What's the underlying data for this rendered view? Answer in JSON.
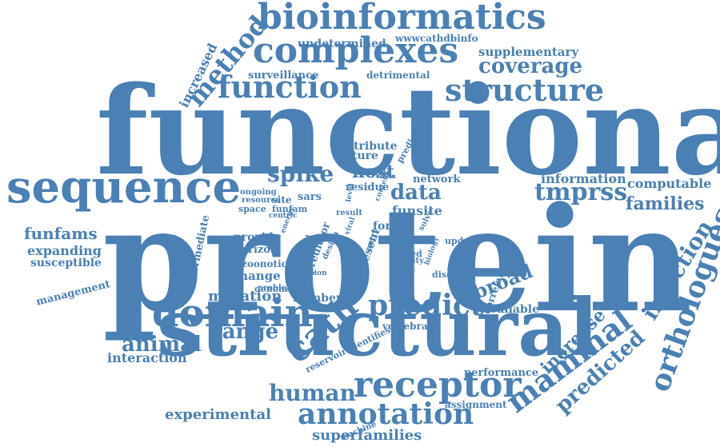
{
  "cloud": {
    "color": "#4a80b4",
    "words": {
      "functional": "functional",
      "protein": "protein",
      "structural": "structural",
      "sequence": "sequence",
      "bioinformatics": "bioinformatics",
      "complexes": "complexes",
      "domain": "domain",
      "receptor": "receptor",
      "function": "function",
      "structure": "structure",
      "annotation": "annotation",
      "coverage": "coverage",
      "spike": "spike",
      "tmprss": "tmprss",
      "predict": "predict",
      "range": "range",
      "animal": "animal",
      "host": "host",
      "data": "data",
      "human": "human",
      "families": "families",
      "computable": "computable",
      "information": "information",
      "funfams": "funfams",
      "expanding": "expanding",
      "susceptible": "susceptible",
      "provide": "provide",
      "horizon": "horizon",
      "zoonotic": "zoonotic",
      "change": "change",
      "mutation": "mutation",
      "available": "available",
      "undetermined": "undetermined",
      "wwwcathdbinfo": "wwwcathdbinfo",
      "supplementary": "supplementary",
      "surveillance": "surveillance",
      "detrimental": "detrimental",
      "contribute": "contribute",
      "feature": "feature",
      "interaction": "interaction",
      "experimental": "experimental",
      "superfamilies": "superfamilies",
      "assignment": "assignment",
      "performance": "performance",
      "number": "number",
      "vertebrate": "vertebrate",
      "genome": "genome",
      "funsite": "funsite",
      "residue": "residue",
      "sars": "sars",
      "site": "site",
      "space": "space",
      "resource": "resource",
      "form": "form",
      "based": "based",
      "affinity": "affinity",
      "disease": "disease",
      "studies": "studies",
      "result": "result",
      "network": "network",
      "method": "method",
      "increased": "increased",
      "cath": "cath",
      "broad": "broad",
      "mammal": "mammal",
      "predicted": "predicted",
      "orthologues": "orthologues",
      "infection": "infection",
      "increase": "increase",
      "management": "management",
      "intermediate": "intermediate",
      "prediction": "prediction",
      "reservoir_identifies": "reservoir identifies",
      "machine": "machine",
      "correlated": "correlated",
      "present": "present",
      "predictor": "predictor",
      "design": "design",
      "entry": "entry",
      "version": "version",
      "biology": "biology",
      "solve": "solve",
      "careful": "careful",
      "energy": "energy",
      "viral": "viral",
      "content": "content",
      "level": "level",
      "infect": "infect",
      "update": "update",
      "problem": "problem",
      "ongoing": "ongoing",
      "funfam": "funfam",
      "centric": "centric",
      "chain": "chain"
    }
  }
}
